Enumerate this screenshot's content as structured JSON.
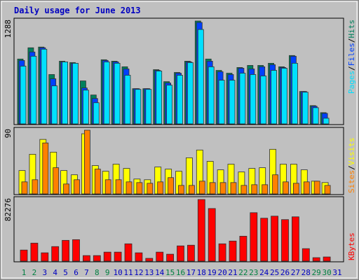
{
  "chart_data": [
    {
      "type": "bar",
      "title": "Daily usage for June 2013",
      "legend_separator": "/",
      "ylim": [
        0,
        1288
      ],
      "yticks": [
        1288
      ],
      "series": [
        {
          "name": "Hits",
          "color": "#00805c",
          "values": [
            812,
            953,
            962,
            618,
            785,
            768,
            538,
            362,
            803,
            785,
            715,
            441,
            441,
            679,
            529,
            644,
            785,
            1288,
            812,
            670,
            635,
            706,
            732,
            732,
            759,
            715,
            856,
            406,
            229,
            141,
            0
          ]
        },
        {
          "name": "Files",
          "color": "#0040ff",
          "values": [
            794,
            900,
            953,
            565,
            776,
            759,
            450,
            318,
            794,
            776,
            688,
            441,
            441,
            670,
            512,
            635,
            776,
            1270,
            785,
            653,
            618,
            697,
            688,
            715,
            741,
            706,
            847,
            406,
            221,
            132,
            0
          ]
        },
        {
          "name": "Pages",
          "color": "#00e0ff",
          "values": [
            723,
            847,
            935,
            476,
            776,
            759,
            423,
            265,
            776,
            759,
            609,
            432,
            432,
            662,
            485,
            609,
            768,
            1182,
            715,
            547,
            547,
            635,
            618,
            600,
            670,
            697,
            759,
            397,
            203,
            71,
            0
          ]
        }
      ]
    },
    {
      "type": "bar",
      "legend_separator": "/",
      "ylim": [
        0,
        90
      ],
      "yticks": [
        90
      ],
      "series": [
        {
          "name": "Visits",
          "color": "#ffff00",
          "values": [
            33,
            56,
            77,
            59,
            33,
            27,
            85,
            40,
            32,
            42,
            36,
            21,
            20,
            38,
            35,
            32,
            51,
            62,
            46,
            34,
            42,
            31,
            36,
            37,
            63,
            42,
            42,
            34,
            18,
            16,
            0
          ]
        },
        {
          "name": "Sites",
          "color": "#ff8000",
          "values": [
            17,
            20,
            72,
            37,
            14,
            20,
            90,
            35,
            20,
            20,
            17,
            16,
            15,
            17,
            23,
            12,
            12,
            18,
            16,
            16,
            16,
            12,
            13,
            13,
            27,
            17,
            15,
            17,
            18,
            12,
            0
          ]
        }
      ]
    },
    {
      "type": "bar",
      "ylim": [
        0,
        82276
      ],
      "yticks": [
        82276
      ],
      "categories": [
        "1",
        "2",
        "3",
        "4",
        "5",
        "6",
        "7",
        "8",
        "9",
        "10",
        "11",
        "12",
        "13",
        "14",
        "15",
        "16",
        "17",
        "18",
        "19",
        "20",
        "21",
        "22",
        "23",
        "24",
        "25",
        "26",
        "27",
        "28",
        "29",
        "30",
        "31"
      ],
      "category_colors": [
        "#008040",
        "#008040",
        "#0000c0",
        "#0000c0",
        "#0000c0",
        "#0000c0",
        "#0000c0",
        "#008040",
        "#008040",
        "#0000c0",
        "#0000c0",
        "#0000c0",
        "#0000c0",
        "#0000c0",
        "#008040",
        "#008040",
        "#0000c0",
        "#0000c0",
        "#0000c0",
        "#0000c0",
        "#0000c0",
        "#008040",
        "#008040",
        "#0000c0",
        "#0000c0",
        "#0000c0",
        "#0000c0",
        "#0000c0",
        "#008040",
        "#008040",
        "#0000c0"
      ],
      "series": [
        {
          "name": "KBytes",
          "color": "#ff0000",
          "values": [
            14784,
            24024,
            11088,
            19404,
            27720,
            28644,
            7392,
            7392,
            12012,
            12012,
            23100,
            11088,
            3696,
            12012,
            9240,
            20328,
            21252,
            82276,
            70224,
            23100,
            26796,
            33264,
            64680,
            57288,
            60060,
            55440,
            59136,
            16632,
            4620,
            5544,
            0
          ]
        }
      ]
    }
  ]
}
